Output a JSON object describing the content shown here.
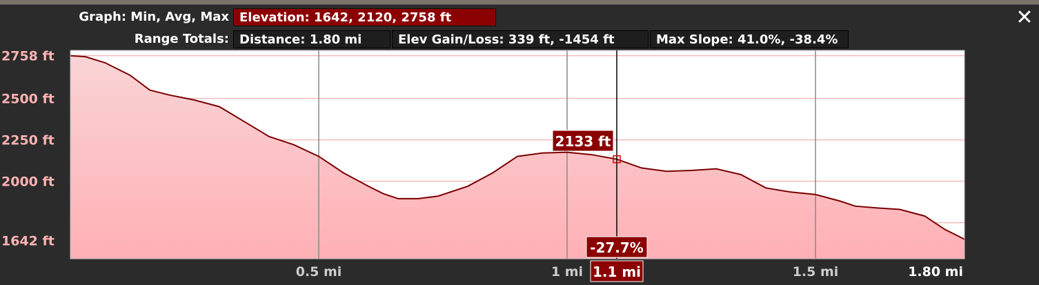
{
  "header": {
    "graph_label": "Graph: Min, Avg, Max",
    "elevation_value": "Elevation: 1642, 2120, 2758 ft",
    "range_label": "Range Totals:",
    "distance_value": "Distance: 1.80 mi",
    "elev_gain_loss_value": "Elev Gain/Loss: 339 ft, -1454 ft",
    "max_slope_value": "Max Slope: 41.0%, -38.4%",
    "close_icon": "close-icon"
  },
  "cursor": {
    "elevation_label": "2133 ft",
    "slope_label": "-27.7%",
    "distance_label": "1.1 mi",
    "x_mi": 1.1,
    "y_ft": 2133
  },
  "colors": {
    "accent": "#8b0000",
    "line": "#7a0000",
    "fill_top": "#f7c9cc",
    "fill_bottom": "#ffb3b8",
    "axis_text": "#ffb3b3",
    "grid_v": "#888888",
    "grid_h": "#f3b9bd"
  },
  "chart_data": {
    "type": "area",
    "xlabel": "",
    "ylabel": "",
    "xlim": [
      0,
      1.8
    ],
    "ylim": [
      1532,
      2790
    ],
    "x_ticks": [
      {
        "value": 0.5,
        "label": "0.5 mi"
      },
      {
        "value": 1.0,
        "label": "1 mi"
      },
      {
        "value": 1.5,
        "label": "1.5 mi"
      },
      {
        "value": 1.8,
        "label": "1.80 mi"
      }
    ],
    "y_ticks": [
      {
        "value": 2758,
        "label": "2758 ft"
      },
      {
        "value": 2500,
        "label": "2500 ft"
      },
      {
        "value": 2250,
        "label": "2250 ft"
      },
      {
        "value": 2000,
        "label": "2000 ft"
      },
      {
        "value": 1642,
        "label": "1642 ft"
      }
    ],
    "series": [
      {
        "x": [
          0,
          0.03,
          0.07,
          0.12,
          0.16,
          0.2,
          0.25,
          0.3,
          0.35,
          0.4,
          0.45,
          0.5,
          0.55,
          0.6,
          0.63,
          0.66,
          0.7,
          0.74,
          0.8,
          0.85,
          0.9,
          0.95,
          1.0,
          1.05,
          1.1,
          1.15,
          1.2,
          1.25,
          1.3,
          1.35,
          1.4,
          1.45,
          1.5,
          1.55,
          1.58,
          1.62,
          1.67,
          1.72,
          1.76,
          1.8
        ],
        "values": [
          2758,
          2752,
          2715,
          2640,
          2550,
          2520,
          2490,
          2450,
          2360,
          2270,
          2220,
          2150,
          2050,
          1970,
          1925,
          1895,
          1895,
          1910,
          1970,
          2050,
          2150,
          2170,
          2175,
          2160,
          2133,
          2080,
          2060,
          2065,
          2075,
          2040,
          1960,
          1935,
          1920,
          1880,
          1850,
          1840,
          1830,
          1790,
          1710,
          1650
        ]
      }
    ]
  }
}
